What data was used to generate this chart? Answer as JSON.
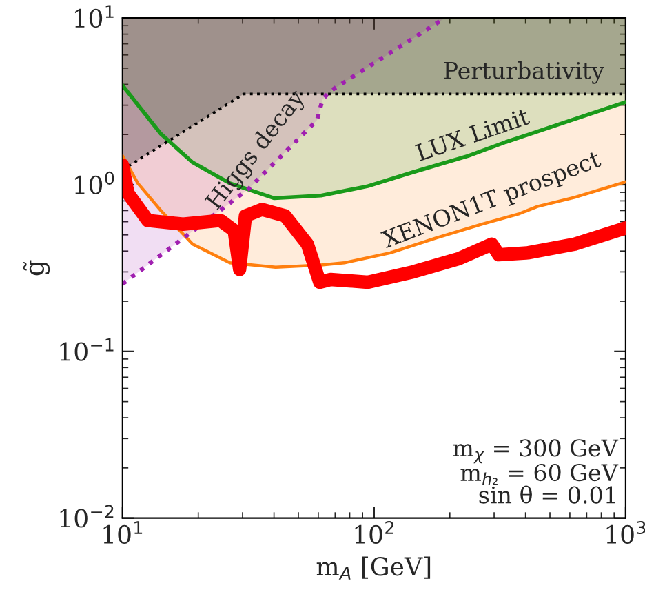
{
  "chart_data": {
    "type": "line",
    "xlabel": "m$_{A}$ [GeV]",
    "ylabel": "g̃",
    "log": "xy",
    "grid": false,
    "xlim": [
      10,
      1000
    ],
    "ylim": [
      0.01,
      10
    ],
    "xticks": [
      {
        "value": 10,
        "label": "10$^{1}$"
      },
      {
        "value": 100,
        "label": "10$^{2}$"
      },
      {
        "value": 1000,
        "label": "10$^{3}$"
      }
    ],
    "yticks": [
      {
        "value": 0.01,
        "label": "10$^{−2}$"
      },
      {
        "value": 0.1,
        "label": "10$^{−1}$"
      },
      {
        "value": 1,
        "label": "10$^{0}$"
      },
      {
        "value": 10,
        "label": "10$^{1}$"
      }
    ],
    "series": [
      {
        "name": "XENON1T prospect",
        "color": "#ff7f0e",
        "x": [
          10,
          11.5,
          14.2,
          19.0,
          26.7,
          40.6,
          61.5,
          76.2,
          116,
          177,
          269,
          378,
          446,
          627,
          1000
        ],
        "values": [
          1.49,
          1.02,
          0.7,
          0.44,
          0.34,
          0.32,
          0.33,
          0.34,
          0.39,
          0.48,
          0.58,
          0.67,
          0.74,
          0.84,
          1.04
        ]
      },
      {
        "name": "LUX Limit",
        "color": "#1a9a1a",
        "x": [
          10,
          14.2,
          19.0,
          26.7,
          40.1,
          61.5,
          94.4,
          143,
          237,
          333,
          506,
          1000
        ],
        "values": [
          3.94,
          2.02,
          1.36,
          1.02,
          0.83,
          0.86,
          0.98,
          1.19,
          1.49,
          1.8,
          2.22,
          3.13
        ]
      },
      {
        "name": "Higgs decay",
        "color": "#a020b0",
        "line_style": "dotted",
        "x": [
          10,
          31.6,
          59.3,
          62.4,
          67.1,
          191
        ],
        "values": [
          0.254,
          0.94,
          2.44,
          3.25,
          3.65,
          10
        ]
      },
      {
        "name": "Perturbativity",
        "color": "#000000",
        "line_style": "dotted",
        "x": [
          10,
          30.3,
          1000
        ],
        "values": [
          1.23,
          3.5,
          3.5
        ]
      },
      {
        "color": "#ff0000",
        "x": [
          10,
          10.5,
          12.6,
          17.4,
          24.5,
          27.8,
          29.2,
          30.8,
          35.8,
          44.3,
          54.3,
          60.8,
          67.2,
          94.4,
          143,
          217,
          294,
          313,
          408,
          627,
          1000
        ],
        "values": [
          1.31,
          0.89,
          0.61,
          0.58,
          0.61,
          0.53,
          0.31,
          0.65,
          0.71,
          0.65,
          0.44,
          0.26,
          0.27,
          0.26,
          0.3,
          0.36,
          0.44,
          0.38,
          0.39,
          0.44,
          0.55
        ]
      }
    ],
    "annotations": [
      "m$_{χ}$ = 300 GeV\nm$_{h₂}$ = 60 GeV\nsin θ = 0.01"
    ]
  }
}
